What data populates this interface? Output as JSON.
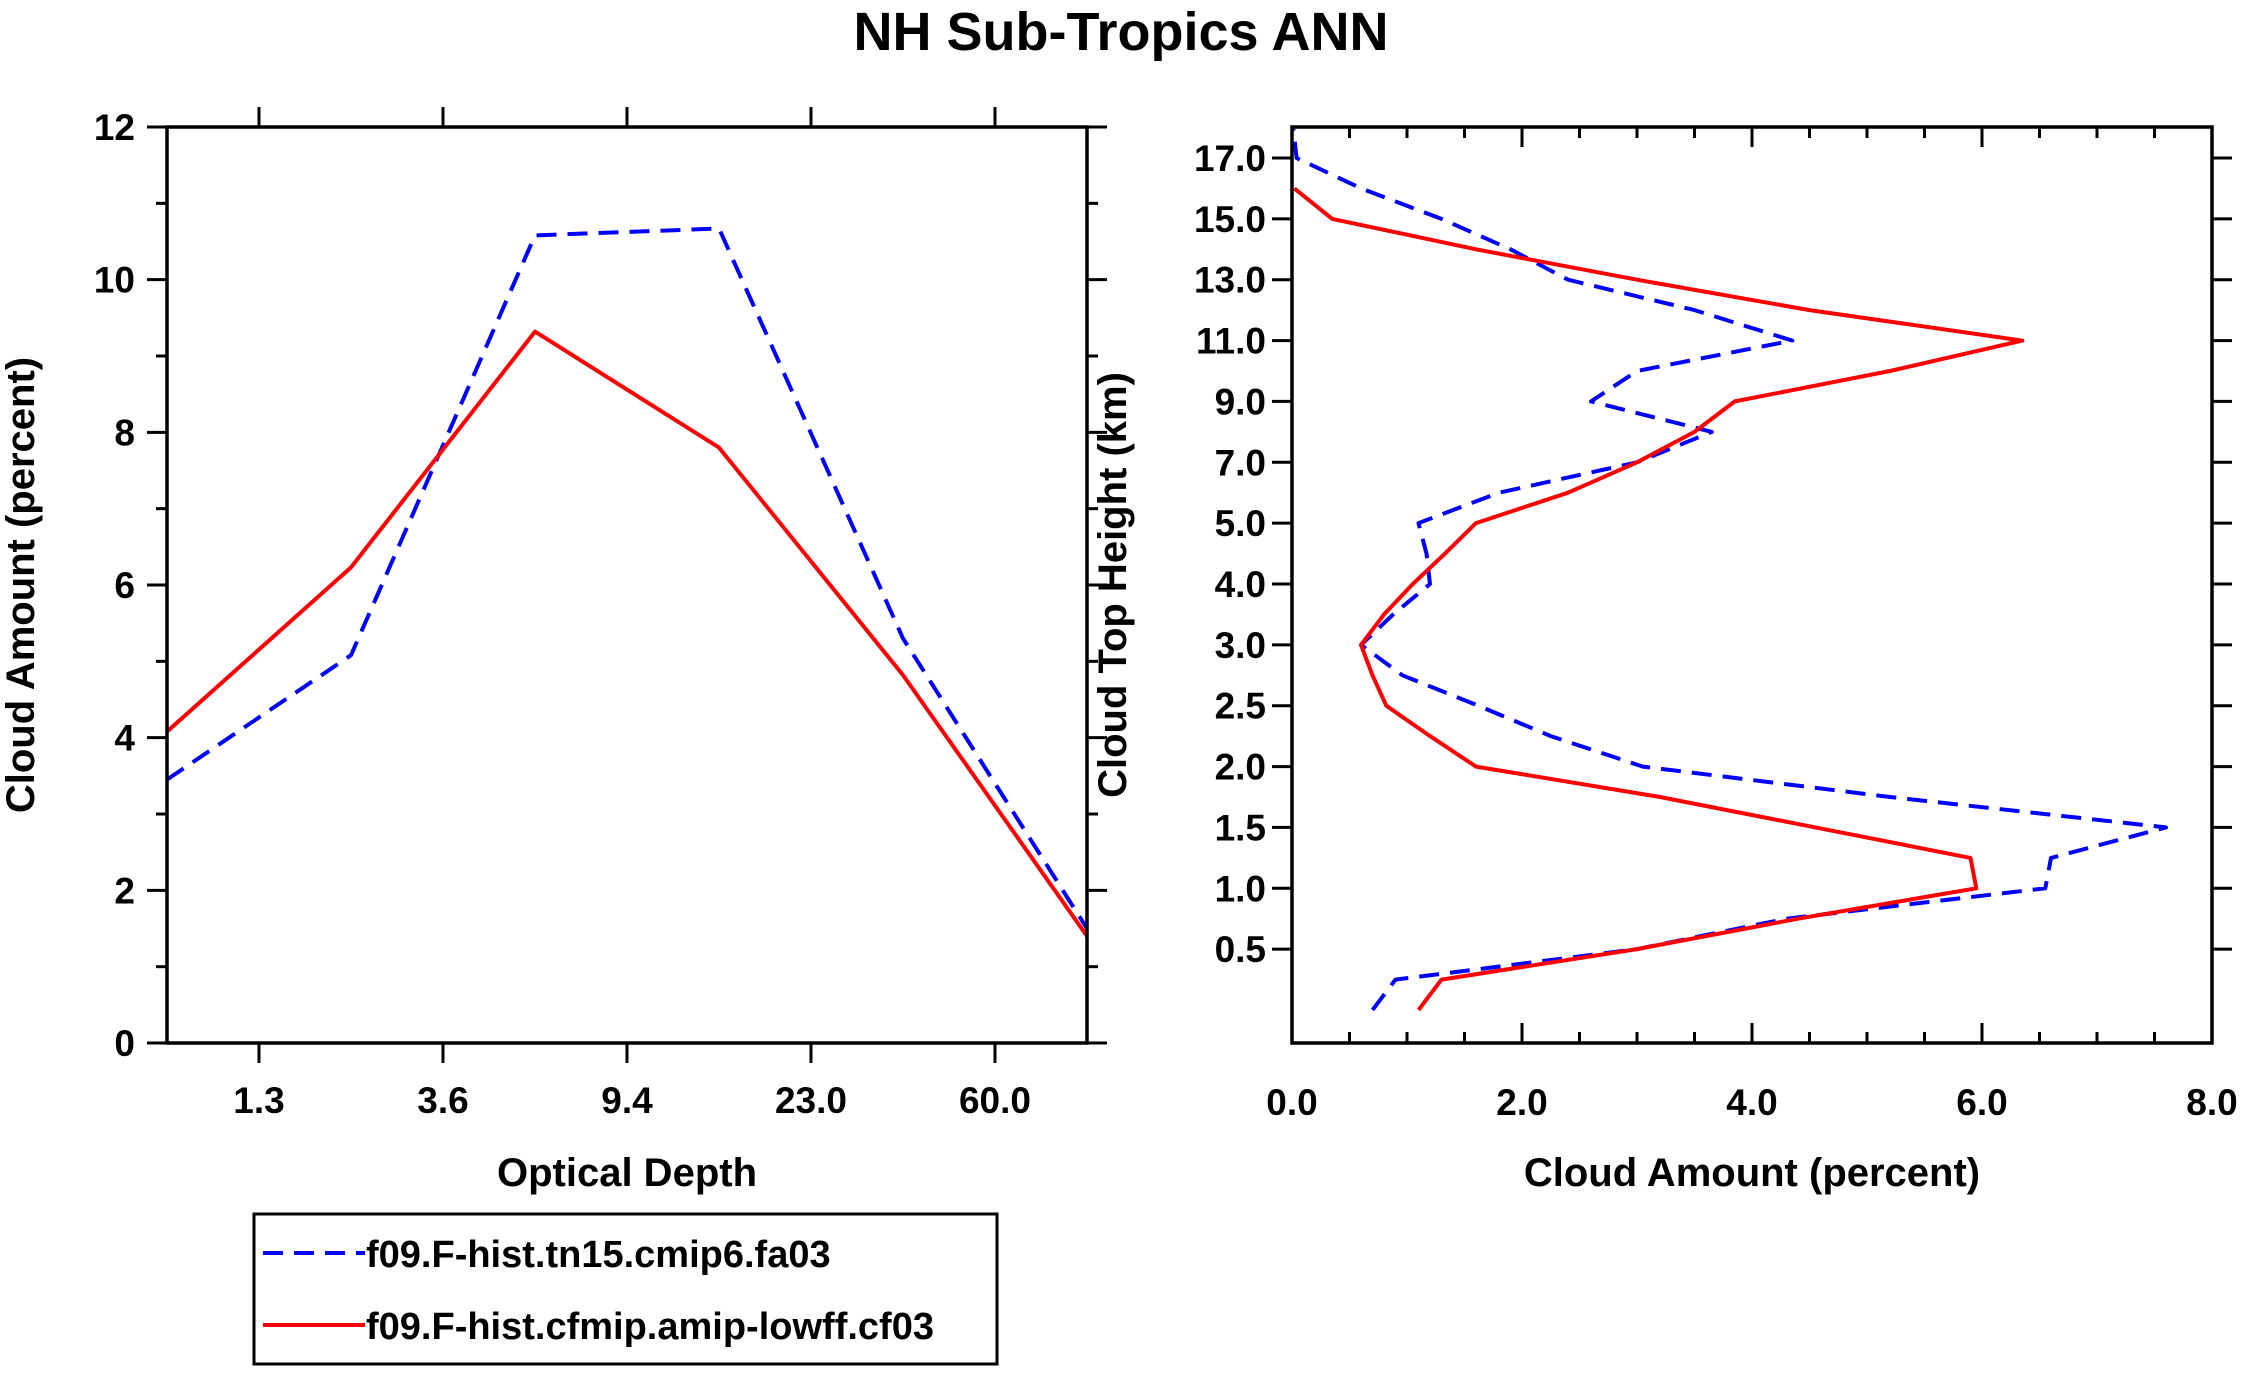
{
  "title": "NH Sub-Tropics ANN",
  "legend": {
    "placement": "bottom-left",
    "entries": [
      {
        "name": "f09.F-hist.tn15.cmip6.fa03",
        "color": "#0000ff",
        "style": "dashed"
      },
      {
        "name": "f09.F-hist.cfmip.amip-lowff.cf03",
        "color": "#ff0000",
        "style": "solid"
      }
    ]
  },
  "chart_data": [
    {
      "type": "line",
      "title": "NH Sub-Tropics ANN",
      "xlabel": "Optical Depth",
      "ylabel": "Cloud Amount (percent)",
      "x_positions": [
        0,
        1,
        2,
        3,
        4,
        5,
        6
      ],
      "xlim": [
        0,
        5
      ],
      "x_ticks": [
        {
          "pos": 0.5,
          "label": "1.3"
        },
        {
          "pos": 1.5,
          "label": "3.6"
        },
        {
          "pos": 2.5,
          "label": "9.4"
        },
        {
          "pos": 3.5,
          "label": "23.0"
        },
        {
          "pos": 4.5,
          "label": "60.0"
        }
      ],
      "ylim": [
        0,
        12
      ],
      "y_ticks": [
        0,
        2,
        4,
        6,
        8,
        10,
        12
      ],
      "y_minor_step": 1,
      "series": [
        {
          "name": "f09.F-hist.tn15.cmip6.fa03",
          "color": "#0000ff",
          "style": "dashed",
          "x": [
            0,
            1,
            2,
            3,
            4,
            5
          ],
          "values": [
            3.45,
            5.08,
            10.58,
            10.67,
            5.3,
            1.5
          ]
        },
        {
          "name": "f09.F-hist.cfmip.amip-lowff.cf03",
          "color": "#ff0000",
          "style": "solid",
          "x": [
            0,
            1,
            2,
            3,
            4,
            5
          ],
          "values": [
            4.08,
            6.23,
            9.32,
            7.8,
            4.82,
            1.4
          ]
        }
      ]
    },
    {
      "type": "line",
      "orientation": "vertical-profile",
      "xlabel": "Cloud Amount (percent)",
      "ylabel": "Cloud Top Height (km)",
      "xlim": [
        0,
        8
      ],
      "x_ticks": [
        {
          "value": 0,
          "label": "0.0"
        },
        {
          "value": 2,
          "label": "2.0"
        },
        {
          "value": 4,
          "label": "4.0"
        },
        {
          "value": 6,
          "label": "6.0"
        },
        {
          "value": 8,
          "label": "8.0"
        }
      ],
      "x_minor_step": 0.5,
      "ylim": [
        0,
        14
      ],
      "y_ticks": [
        {
          "index": 1,
          "label": "0.5"
        },
        {
          "index": 2,
          "label": "1.0"
        },
        {
          "index": 3,
          "label": "1.5"
        },
        {
          "index": 4,
          "label": "2.0"
        },
        {
          "index": 5,
          "label": "2.5"
        },
        {
          "index": 6,
          "label": "3.0"
        },
        {
          "index": 7,
          "label": "4.0"
        },
        {
          "index": 8,
          "label": "5.0"
        },
        {
          "index": 9,
          "label": "7.0"
        },
        {
          "index": 10,
          "label": "9.0"
        },
        {
          "index": 11,
          "label": "11.0"
        },
        {
          "index": 12,
          "label": "13.0"
        },
        {
          "index": 13,
          "label": "15.0"
        },
        {
          "index": 14,
          "label": "17.0"
        }
      ],
      "series": [
        {
          "name": "f09.F-hist.tn15.cmip6.fa03",
          "color": "#0000ff",
          "style": "dashed",
          "levels": [
            0,
            0.5,
            1,
            1.5,
            2,
            2.5,
            3,
            3.5,
            4,
            4.5,
            5,
            5.5,
            6,
            6.5,
            7,
            7.5,
            8,
            8.5,
            9,
            9.5,
            10,
            10.5,
            11,
            11.5,
            12,
            12.5,
            13,
            13.5,
            14,
            14.5
          ],
          "values": [
            0.7,
            0.9,
            3.0,
            4.3,
            6.55,
            6.6,
            7.6,
            5.2,
            3.05,
            2.25,
            1.62,
            0.96,
            0.6,
            0.88,
            1.2,
            1.17,
            1.1,
            1.8,
            3.0,
            3.65,
            2.6,
            3.0,
            4.35,
            3.5,
            2.4,
            1.9,
            1.3,
            0.6,
            0.04,
            0.01
          ]
        },
        {
          "name": "f09.F-hist.cfmip.amip-lowff.cf03",
          "color": "#ff0000",
          "style": "solid",
          "levels": [
            0,
            0.5,
            1,
            1.5,
            2,
            2.5,
            3,
            3.5,
            4,
            4.5,
            5,
            5.5,
            6,
            6.5,
            7,
            7.5,
            8,
            8.5,
            9,
            9.5,
            10,
            10.5,
            11,
            11.5,
            12,
            12.5,
            13,
            13.5
          ],
          "values": [
            1.1,
            1.3,
            3.0,
            4.4,
            5.95,
            5.9,
            4.55,
            3.2,
            1.6,
            1.2,
            0.82,
            0.7,
            0.6,
            0.8,
            1.05,
            1.33,
            1.6,
            2.4,
            3.0,
            3.5,
            3.85,
            5.2,
            6.35,
            4.5,
            3.0,
            1.6,
            0.35,
            0.02
          ]
        }
      ]
    }
  ]
}
